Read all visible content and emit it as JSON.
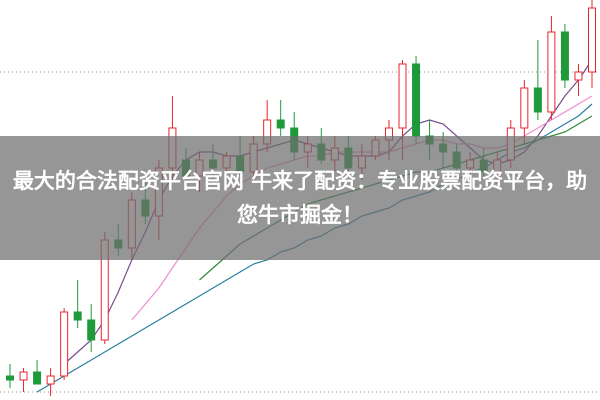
{
  "chart_data": {
    "type": "candlestick",
    "title": "最大的合法配资平台官网 牛来了配资：专业股票配资平台，助您牛市掘金！",
    "up_color": "#e8242b",
    "down_color": "#1f9a3a",
    "open": [
      6,
      5,
      7,
      4,
      6,
      22,
      20,
      15,
      40,
      38,
      50,
      46,
      58,
      60,
      56,
      60,
      58,
      61,
      57,
      64,
      70,
      68,
      62,
      64,
      60,
      63,
      58,
      61,
      65,
      68,
      84,
      66,
      64,
      62,
      58,
      60,
      57,
      60,
      68,
      78,
      72,
      92,
      80,
      82
    ],
    "high": [
      9,
      8,
      10,
      8,
      23,
      30,
      24,
      42,
      44,
      52,
      56,
      60,
      76,
      63,
      62,
      64,
      62,
      66,
      66,
      75,
      75,
      72,
      66,
      68,
      66,
      66,
      64,
      66,
      70,
      85,
      86,
      70,
      67,
      64,
      62,
      63,
      62,
      70,
      80,
      90,
      96,
      94,
      84,
      100
    ],
    "low": [
      3,
      2,
      4,
      1,
      5,
      18,
      12,
      14,
      36,
      35,
      44,
      40,
      55,
      54,
      52,
      55,
      54,
      56,
      55,
      62,
      66,
      60,
      58,
      59,
      57,
      56,
      55,
      60,
      60,
      60,
      64,
      60,
      58,
      56,
      54,
      55,
      54,
      58,
      64,
      70,
      70,
      78,
      76,
      78
    ],
    "close": [
      5,
      7,
      4,
      6,
      22,
      20,
      15,
      40,
      38,
      50,
      46,
      58,
      68,
      56,
      60,
      58,
      61,
      57,
      64,
      70,
      68,
      62,
      64,
      60,
      63,
      58,
      61,
      65,
      68,
      84,
      66,
      64,
      62,
      58,
      60,
      57,
      60,
      68,
      78,
      72,
      92,
      80,
      82,
      98
    ],
    "lines": [
      {
        "color": "#7a4a8c",
        "values": [
          null,
          null,
          null,
          null,
          9,
          12,
          15,
          20,
          27,
          35,
          42,
          50,
          56,
          60,
          62,
          62,
          61,
          61,
          62,
          63,
          64,
          65,
          64,
          63,
          62,
          61,
          61,
          61,
          62,
          66,
          69,
          70,
          69,
          66,
          63,
          60,
          59,
          60,
          62,
          66,
          71,
          76,
          80,
          85
        ]
      },
      {
        "color": "#f08ccf",
        "values": [
          null,
          null,
          null,
          null,
          null,
          null,
          null,
          null,
          null,
          20,
          24,
          28,
          33,
          38,
          43,
          47,
          51,
          54,
          56,
          58,
          59,
          60,
          61,
          61,
          62,
          62,
          62,
          62,
          62,
          63,
          64,
          65,
          65,
          64,
          64,
          63,
          63,
          64,
          66,
          68,
          70,
          72,
          74,
          76
        ]
      },
      {
        "color": "#2f8a3a",
        "values": [
          null,
          null,
          null,
          null,
          null,
          null,
          null,
          null,
          null,
          null,
          null,
          null,
          null,
          null,
          30,
          33,
          36,
          39,
          41,
          43,
          45,
          47,
          49,
          50,
          51,
          52,
          53,
          54,
          55,
          56,
          57,
          57,
          58,
          59,
          60,
          61,
          62,
          63,
          64,
          65,
          66,
          67,
          69,
          71
        ]
      },
      {
        "color": "#2a7fa0",
        "values": [
          null,
          null,
          2,
          4,
          6,
          8,
          10,
          12,
          14,
          16,
          18,
          20,
          22,
          24,
          26,
          28,
          30,
          32,
          34,
          35,
          37,
          38,
          40,
          41,
          43,
          44,
          46,
          47,
          48,
          50,
          51,
          52,
          54,
          55,
          57,
          58,
          60,
          62,
          63,
          65,
          67,
          69,
          71,
          74
        ]
      }
    ]
  }
}
